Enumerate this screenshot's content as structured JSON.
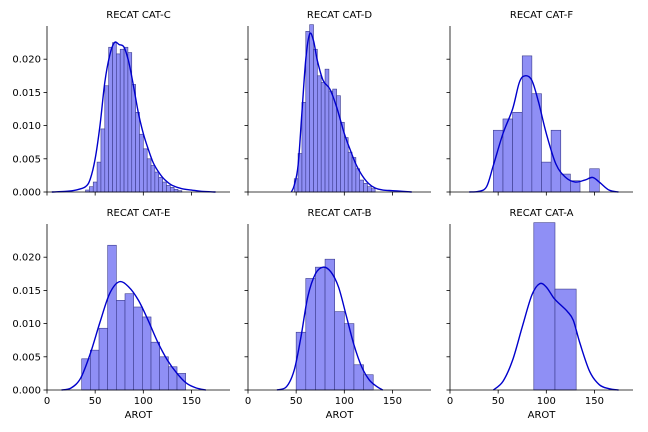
{
  "chart_data": {
    "type": "histogram-grid",
    "xlim": [
      0,
      190
    ],
    "ylim": [
      0,
      0.025
    ],
    "x_ticks": [
      0,
      50,
      100,
      150
    ],
    "y_ticks": [
      0.0,
      0.005,
      0.01,
      0.015,
      0.02
    ],
    "y_tick_labels": [
      "0.000",
      "0.005",
      "0.010",
      "0.015",
      "0.020"
    ],
    "x_tick_labels": [
      "0",
      "50",
      "100",
      "150"
    ],
    "xlabel": "AROT",
    "colors": {
      "bar_fill": "#8f8ff5",
      "bar_edge": "#3a3a8c",
      "kde": "#0000cc"
    },
    "panels": [
      {
        "title": "RECAT CAT-C",
        "bins": [
          [
            40,
            44,
            0.0003
          ],
          [
            44,
            48,
            0.0008
          ],
          [
            48,
            52,
            0.0015
          ],
          [
            52,
            56,
            0.0045
          ],
          [
            56,
            60,
            0.0095
          ],
          [
            60,
            64,
            0.016
          ],
          [
            64,
            68,
            0.0218
          ],
          [
            68,
            72,
            0.0225
          ],
          [
            72,
            76,
            0.0208
          ],
          [
            76,
            80,
            0.0215
          ],
          [
            80,
            84,
            0.0218
          ],
          [
            84,
            88,
            0.021
          ],
          [
            88,
            92,
            0.0162
          ],
          [
            92,
            96,
            0.012
          ],
          [
            96,
            100,
            0.0087
          ],
          [
            100,
            104,
            0.0065
          ],
          [
            104,
            108,
            0.005
          ],
          [
            108,
            112,
            0.004
          ],
          [
            112,
            116,
            0.003
          ],
          [
            116,
            120,
            0.0022
          ],
          [
            120,
            124,
            0.0015
          ],
          [
            124,
            128,
            0.001
          ],
          [
            128,
            132,
            0.0007
          ],
          [
            132,
            136,
            0.0004
          ],
          [
            136,
            140,
            0.0002
          ]
        ],
        "kde": [
          [
            5,
            0
          ],
          [
            20,
            0.0001
          ],
          [
            30,
            0.0003
          ],
          [
            40,
            0.0008
          ],
          [
            45,
            0.002
          ],
          [
            50,
            0.005
          ],
          [
            55,
            0.01
          ],
          [
            60,
            0.0165
          ],
          [
            65,
            0.0205
          ],
          [
            70,
            0.0225
          ],
          [
            75,
            0.0222
          ],
          [
            80,
            0.0218
          ],
          [
            85,
            0.0195
          ],
          [
            90,
            0.0158
          ],
          [
            95,
            0.0118
          ],
          [
            100,
            0.0088
          ],
          [
            105,
            0.0065
          ],
          [
            110,
            0.0045
          ],
          [
            115,
            0.0032
          ],
          [
            120,
            0.0022
          ],
          [
            125,
            0.0015
          ],
          [
            130,
            0.001
          ],
          [
            140,
            0.0005
          ],
          [
            150,
            0.0003
          ],
          [
            160,
            0.0001
          ],
          [
            175,
            0
          ]
        ]
      },
      {
        "title": "RECAT CAT-D",
        "bins": [
          [
            48,
            52,
            0.002
          ],
          [
            52,
            56,
            0.0058
          ],
          [
            56,
            60,
            0.0135
          ],
          [
            60,
            64,
            0.0242
          ],
          [
            64,
            68,
            0.0252
          ],
          [
            68,
            72,
            0.0215
          ],
          [
            72,
            76,
            0.0175
          ],
          [
            76,
            80,
            0.0165
          ],
          [
            80,
            84,
            0.0185
          ],
          [
            84,
            88,
            0.0152
          ],
          [
            88,
            92,
            0.0155
          ],
          [
            92,
            96,
            0.0145
          ],
          [
            96,
            100,
            0.0105
          ],
          [
            100,
            104,
            0.0082
          ],
          [
            104,
            108,
            0.006
          ],
          [
            108,
            112,
            0.0052
          ],
          [
            112,
            116,
            0.0035
          ],
          [
            116,
            120,
            0.0018
          ],
          [
            120,
            124,
            0.0013
          ],
          [
            124,
            128,
            0.0008
          ],
          [
            128,
            132,
            0.0005
          ]
        ],
        "kde": [
          [
            45,
            0
          ],
          [
            48,
            0.001
          ],
          [
            52,
            0.004
          ],
          [
            56,
            0.012
          ],
          [
            60,
            0.02
          ],
          [
            64,
            0.0238
          ],
          [
            68,
            0.0228
          ],
          [
            72,
            0.0198
          ],
          [
            78,
            0.0168
          ],
          [
            85,
            0.0155
          ],
          [
            92,
            0.0128
          ],
          [
            100,
            0.0088
          ],
          [
            106,
            0.0064
          ],
          [
            112,
            0.0042
          ],
          [
            118,
            0.0026
          ],
          [
            125,
            0.0013
          ],
          [
            132,
            0.0006
          ],
          [
            140,
            0.0003
          ],
          [
            150,
            0.0002
          ],
          [
            160,
            0.0001
          ],
          [
            170,
            0
          ]
        ]
      },
      {
        "title": "RECAT CAT-F",
        "bins": [
          [
            45,
            55,
            0.0093
          ],
          [
            55,
            65,
            0.011
          ],
          [
            65,
            75,
            0.012
          ],
          [
            75,
            85,
            0.0205
          ],
          [
            85,
            95,
            0.0148
          ],
          [
            95,
            105,
            0.0045
          ],
          [
            105,
            115,
            0.0093
          ],
          [
            115,
            125,
            0.0027
          ],
          [
            125,
            135,
            0.0017
          ],
          [
            135,
            145,
            0.0
          ],
          [
            145,
            155,
            0.0035
          ]
        ],
        "kde": [
          [
            20,
            0
          ],
          [
            30,
            0.0001
          ],
          [
            38,
            0.0008
          ],
          [
            45,
            0.004
          ],
          [
            55,
            0.0088
          ],
          [
            65,
            0.0125
          ],
          [
            72,
            0.0165
          ],
          [
            78,
            0.0175
          ],
          [
            85,
            0.0168
          ],
          [
            92,
            0.0135
          ],
          [
            100,
            0.0088
          ],
          [
            110,
            0.0042
          ],
          [
            120,
            0.0022
          ],
          [
            130,
            0.0015
          ],
          [
            140,
            0.0018
          ],
          [
            148,
            0.0022
          ],
          [
            155,
            0.0015
          ],
          [
            165,
            0.0003
          ],
          [
            175,
            0
          ]
        ]
      },
      {
        "title": "RECAT CAT-E",
        "bins": [
          [
            36,
            45,
            0.0047
          ],
          [
            45,
            54,
            0.006
          ],
          [
            54,
            63,
            0.0093
          ],
          [
            63,
            72,
            0.0218
          ],
          [
            72,
            81,
            0.0135
          ],
          [
            81,
            90,
            0.0145
          ],
          [
            90,
            99,
            0.0125
          ],
          [
            99,
            108,
            0.011
          ],
          [
            108,
            117,
            0.0072
          ],
          [
            117,
            126,
            0.005
          ],
          [
            126,
            135,
            0.0035
          ],
          [
            135,
            144,
            0.0025
          ]
        ],
        "kde": [
          [
            15,
            0
          ],
          [
            25,
            0.0003
          ],
          [
            35,
            0.0018
          ],
          [
            45,
            0.0055
          ],
          [
            55,
            0.0102
          ],
          [
            65,
            0.0145
          ],
          [
            75,
            0.0163
          ],
          [
            85,
            0.0155
          ],
          [
            95,
            0.0135
          ],
          [
            105,
            0.0105
          ],
          [
            115,
            0.0072
          ],
          [
            125,
            0.0045
          ],
          [
            135,
            0.0025
          ],
          [
            145,
            0.001
          ],
          [
            155,
            0.0003
          ],
          [
            165,
            0
          ]
        ]
      },
      {
        "title": "RECAT CAT-B",
        "bins": [
          [
            50,
            60,
            0.0087
          ],
          [
            60,
            70,
            0.0168
          ],
          [
            70,
            80,
            0.0185
          ],
          [
            80,
            90,
            0.0197
          ],
          [
            90,
            100,
            0.0118
          ],
          [
            100,
            110,
            0.01
          ],
          [
            110,
            120,
            0.0038
          ],
          [
            120,
            130,
            0.0023
          ]
        ],
        "kde": [
          [
            30,
            0
          ],
          [
            40,
            0.0005
          ],
          [
            48,
            0.003
          ],
          [
            55,
            0.008
          ],
          [
            62,
            0.014
          ],
          [
            70,
            0.0175
          ],
          [
            78,
            0.0185
          ],
          [
            86,
            0.0178
          ],
          [
            94,
            0.0155
          ],
          [
            102,
            0.0112
          ],
          [
            110,
            0.0068
          ],
          [
            118,
            0.0035
          ],
          [
            126,
            0.0015
          ],
          [
            134,
            0.0005
          ],
          [
            140,
            0
          ]
        ]
      },
      {
        "title": "RECAT CAT-A",
        "bins": [
          [
            87,
            109,
            0.0252
          ],
          [
            109,
            131,
            0.0152
          ]
        ],
        "kde": [
          [
            45,
            0
          ],
          [
            55,
            0.0013
          ],
          [
            65,
            0.0045
          ],
          [
            75,
            0.0095
          ],
          [
            85,
            0.0143
          ],
          [
            93,
            0.016
          ],
          [
            100,
            0.0155
          ],
          [
            108,
            0.0138
          ],
          [
            115,
            0.0128
          ],
          [
            122,
            0.0118
          ],
          [
            128,
            0.0105
          ],
          [
            135,
            0.007
          ],
          [
            145,
            0.0028
          ],
          [
            155,
            0.0008
          ],
          [
            165,
            0.0002
          ],
          [
            175,
            0
          ]
        ]
      }
    ]
  }
}
